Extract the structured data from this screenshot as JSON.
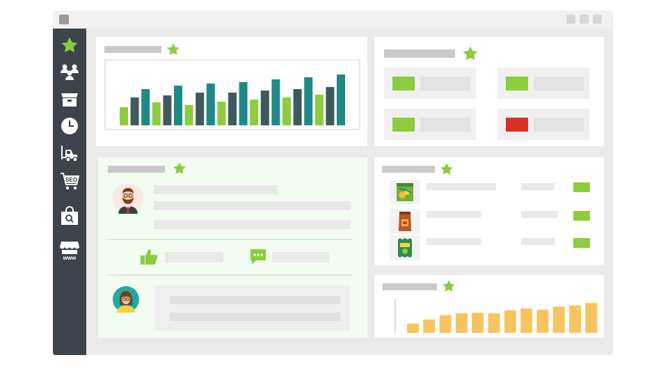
{
  "colors": {
    "accent_green": "#8dcc3d",
    "teal": "#1f8a85",
    "dark_slate": "#3f5a5c",
    "status_red": "#d93025",
    "orange_bar": "#f9c35f",
    "sidebar_bg": "#3c434a"
  },
  "sidebar": {
    "items": [
      {
        "icon": "star-icon"
      },
      {
        "icon": "users-icon"
      },
      {
        "icon": "box-icon"
      },
      {
        "icon": "clock-icon"
      },
      {
        "icon": "forklift-icon"
      },
      {
        "icon": "seo-cart-icon",
        "label": "SEO"
      },
      {
        "icon": "shopping-bag-search-icon"
      },
      {
        "icon": "web-store-icon",
        "label": "www"
      }
    ]
  },
  "stat_tiles": [
    {
      "status": "green"
    },
    {
      "status": "green"
    },
    {
      "status": "green"
    },
    {
      "status": "red"
    }
  ],
  "product_list": [
    {
      "icon": "cereal-box-icon",
      "status": "green"
    },
    {
      "icon": "coffee-bag-icon",
      "status": "green"
    },
    {
      "icon": "snack-bag-icon",
      "status": "green"
    }
  ],
  "chart_data": [
    {
      "type": "bar",
      "series_colors": [
        "#8dcc3d",
        "#3f5a5c",
        "#1f8a85"
      ],
      "values": [
        26,
        40,
        52,
        33,
        43,
        57,
        29,
        47,
        60,
        34,
        47,
        62,
        37,
        50,
        66,
        40,
        52,
        69,
        44,
        55,
        73
      ],
      "ylim": [
        0,
        80
      ],
      "grid": false
    },
    {
      "type": "bar",
      "color": "#f9c35f",
      "values": [
        15,
        22,
        29,
        32,
        33,
        32,
        37,
        40,
        38,
        43,
        45,
        49
      ],
      "ylim": [
        0,
        55
      ],
      "grid": false
    }
  ]
}
